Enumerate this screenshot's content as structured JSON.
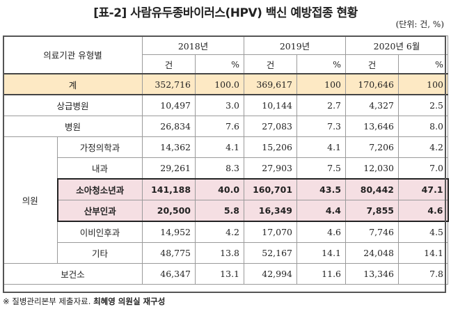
{
  "title": "[표-2] 사람유두종바이러스(HPV) 백신 예방접종 현황",
  "unit": "(단위: 건, %)",
  "header": {
    "category": "의료기관 유형별",
    "years": [
      "2018년",
      "2019년",
      "2020년 6월"
    ],
    "count": "건",
    "pct": "%"
  },
  "rows": {
    "total": {
      "label": "계",
      "v": [
        "352,716",
        "100.0",
        "369,617",
        "100",
        "170,646",
        "100"
      ]
    },
    "tertiary": {
      "label": "상급병원",
      "v": [
        "10,497",
        "3.0",
        "10,144",
        "2.7",
        "4,327",
        "2.5"
      ]
    },
    "hospital": {
      "label": "병원",
      "v": [
        "26,834",
        "7.6",
        "27,083",
        "7.3",
        "13,646",
        "8.0"
      ]
    },
    "clinic_group": "의원",
    "family": {
      "label": "가정의학과",
      "v": [
        "14,362",
        "4.1",
        "15,206",
        "4.1",
        "7,206",
        "4.2"
      ]
    },
    "internal": {
      "label": "내과",
      "v": [
        "29,261",
        "8.3",
        "27,903",
        "7.5",
        "12,030",
        "7.0"
      ]
    },
    "pediatric": {
      "label": "소아청소년과",
      "v": [
        "141,188",
        "40.0",
        "160,701",
        "43.5",
        "80,442",
        "47.1"
      ]
    },
    "obgyn": {
      "label": "산부인과",
      "v": [
        "20,500",
        "5.8",
        "16,349",
        "4.4",
        "7,855",
        "4.6"
      ]
    },
    "ent": {
      "label": "이비인후과",
      "v": [
        "14,952",
        "4.2",
        "17,070",
        "4.6",
        "7,746",
        "4.5"
      ]
    },
    "other": {
      "label": "기타",
      "v": [
        "48,775",
        "13.8",
        "52,167",
        "14.1",
        "24,048",
        "14.1"
      ]
    },
    "health_center": {
      "label": "보건소",
      "v": [
        "46,347",
        "13.1",
        "42,994",
        "11.6",
        "13,346",
        "7.8"
      ]
    }
  },
  "footer": {
    "source": "※ 질병관리본부 제출자료.",
    "note": "최혜영 의원실 재구성"
  }
}
